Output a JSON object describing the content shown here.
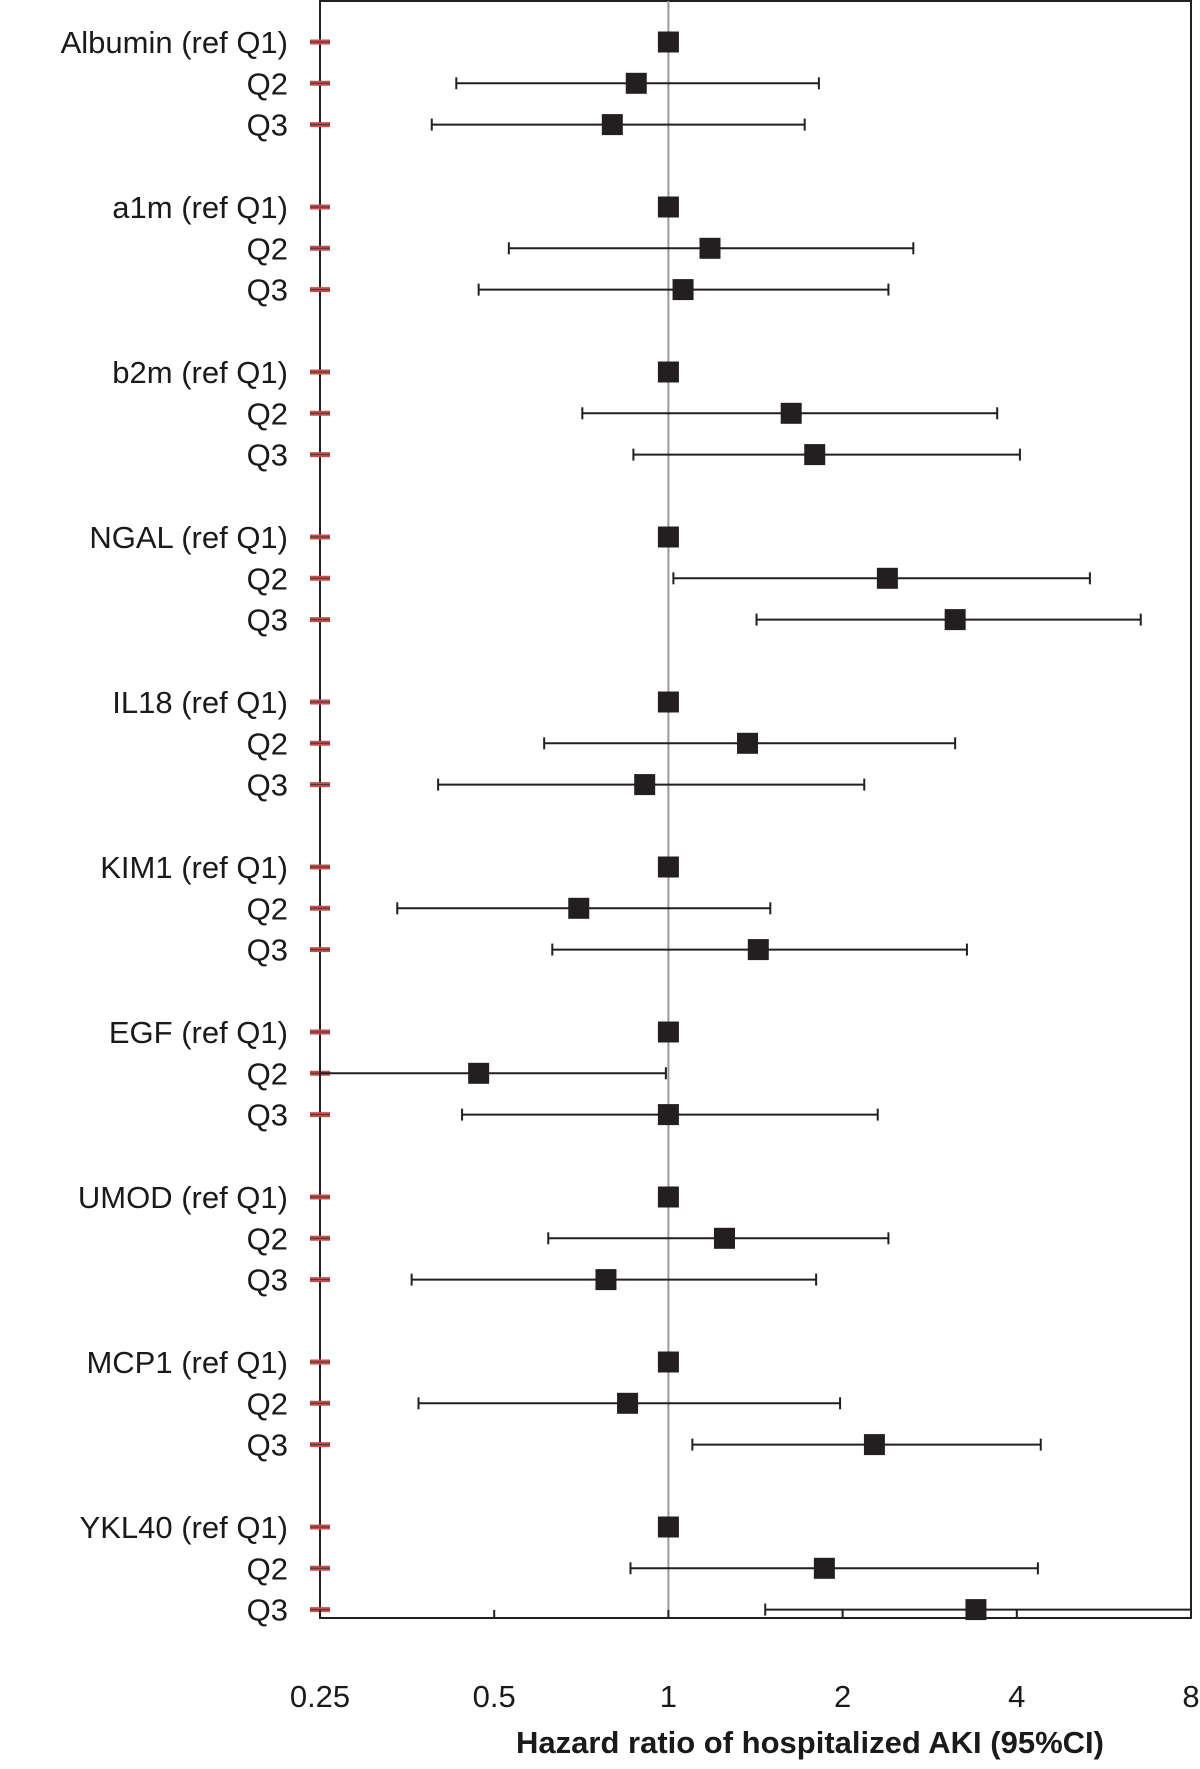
{
  "colors": {
    "marker": "#231f20",
    "error_bar": "#231f20",
    "reference_line": "#9a9a9a",
    "frame": "#231f20",
    "row_tick": "#c0504d"
  },
  "chart_data": {
    "type": "forest",
    "xlabel": "Hazard ratio of hospitalized AKI (95%CI)",
    "x_scale": "log2",
    "xlim": [
      0.25,
      8
    ],
    "x_ticks": [
      0.25,
      0.5,
      1,
      2,
      4,
      8
    ],
    "x_tick_labels": [
      "0.25",
      "0.5",
      "1",
      "2",
      "4",
      "8"
    ],
    "reference_value": 1,
    "rows": [
      {
        "label": "Albumin (ref Q1)",
        "hr": 1.0,
        "lo": null,
        "hi": null
      },
      {
        "label": "Q2",
        "hr": 0.88,
        "lo": 0.43,
        "hi": 1.82
      },
      {
        "label": "Q3",
        "hr": 0.8,
        "lo": 0.39,
        "hi": 1.72
      },
      {
        "label": "a1m (ref Q1)",
        "hr": 1.0,
        "lo": null,
        "hi": null
      },
      {
        "label": "Q2",
        "hr": 1.18,
        "lo": 0.53,
        "hi": 2.65
      },
      {
        "label": "Q3",
        "hr": 1.06,
        "lo": 0.47,
        "hi": 2.4
      },
      {
        "label": "b2m (ref Q1)",
        "hr": 1.0,
        "lo": null,
        "hi": null
      },
      {
        "label": "Q2",
        "hr": 1.63,
        "lo": 0.71,
        "hi": 3.7
      },
      {
        "label": "Q3",
        "hr": 1.79,
        "lo": 0.87,
        "hi": 4.05
      },
      {
        "label": "NGAL (ref Q1)",
        "hr": 1.0,
        "lo": null,
        "hi": null
      },
      {
        "label": "Q2",
        "hr": 2.39,
        "lo": 1.02,
        "hi": 5.35
      },
      {
        "label": "Q3",
        "hr": 3.13,
        "lo": 1.42,
        "hi": 6.55
      },
      {
        "label": "IL18 (ref Q1)",
        "hr": 1.0,
        "lo": null,
        "hi": null
      },
      {
        "label": "Q2",
        "hr": 1.37,
        "lo": 0.61,
        "hi": 3.13
      },
      {
        "label": "Q3",
        "hr": 0.91,
        "lo": 0.4,
        "hi": 2.18
      },
      {
        "label": "KIM1 (ref Q1)",
        "hr": 1.0,
        "lo": null,
        "hi": null
      },
      {
        "label": "Q2",
        "hr": 0.7,
        "lo": 0.34,
        "hi": 1.5
      },
      {
        "label": "Q3",
        "hr": 1.43,
        "lo": 0.63,
        "hi": 3.28
      },
      {
        "label": "EGF  (ref Q1)",
        "hr": 1.0,
        "lo": null,
        "hi": null
      },
      {
        "label": "Q2",
        "hr": 0.47,
        "lo": 0.25,
        "hi": 0.99
      },
      {
        "label": "Q3",
        "hr": 1.0,
        "lo": 0.44,
        "hi": 2.3
      },
      {
        "label": "UMOD (ref Q1)",
        "hr": 1.0,
        "lo": null,
        "hi": null
      },
      {
        "label": "Q2",
        "hr": 1.25,
        "lo": 0.62,
        "hi": 2.4
      },
      {
        "label": "Q3",
        "hr": 0.78,
        "lo": 0.36,
        "hi": 1.8
      },
      {
        "label": "MCP1 (ref Q1)",
        "hr": 1.0,
        "lo": null,
        "hi": null
      },
      {
        "label": "Q2",
        "hr": 0.85,
        "lo": 0.37,
        "hi": 1.98
      },
      {
        "label": "Q3",
        "hr": 2.27,
        "lo": 1.1,
        "hi": 4.4
      },
      {
        "label": "YKL40 (ref Q1)",
        "hr": 1.0,
        "lo": null,
        "hi": null
      },
      {
        "label": "Q2",
        "hr": 1.86,
        "lo": 0.86,
        "hi": 4.35
      },
      {
        "label": "Q3",
        "hr": 3.4,
        "lo": 1.47,
        "hi": 8.0
      }
    ]
  }
}
